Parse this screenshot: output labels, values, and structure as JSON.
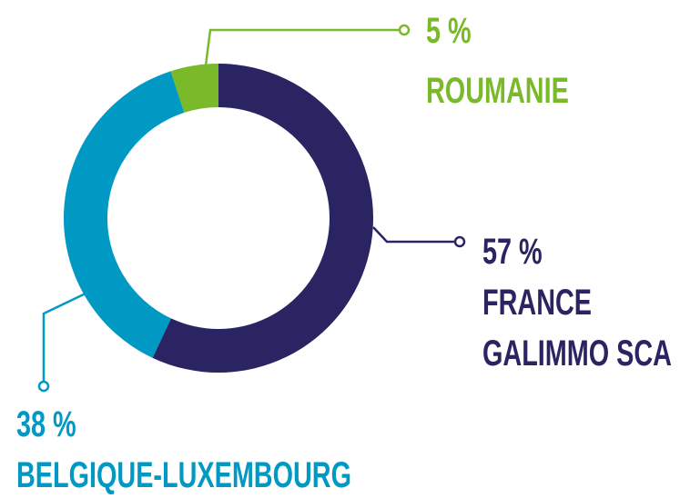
{
  "chart_data": {
    "type": "donut",
    "categories": [
      "FRANCE GALIMMO SCA",
      "BELGIQUE-LUXEMBOURG",
      "ROUMANIE"
    ],
    "values": [
      57,
      38,
      5
    ],
    "value_labels": [
      "57 %",
      "38 %",
      "5 %"
    ],
    "colors": [
      "#2b2462",
      "#0099c4",
      "#7ab929"
    ]
  }
}
